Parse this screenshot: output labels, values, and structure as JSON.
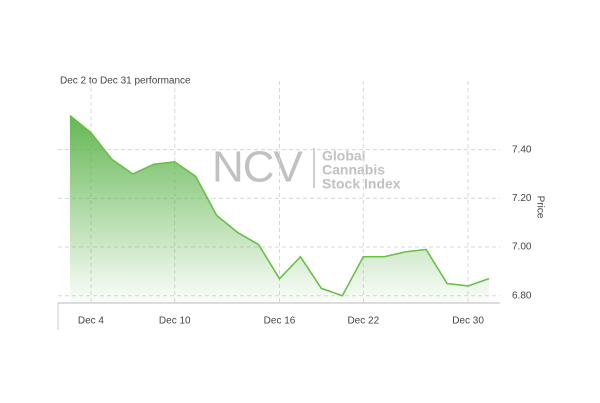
{
  "chart_data": {
    "type": "area",
    "subtitle": "Dec 2 to Dec 31 performance",
    "watermark": {
      "logo": "NCV",
      "lines": [
        "Global",
        "Cannabis",
        "Stock Index"
      ]
    },
    "y_label": "Price",
    "categories": [
      null,
      "Dec 4",
      null,
      null,
      null,
      "Dec 10",
      null,
      null,
      null,
      null,
      "Dec 16",
      null,
      null,
      null,
      "Dec 22",
      null,
      null,
      null,
      null,
      "Dec 30",
      null
    ],
    "values": [
      7.54,
      7.47,
      7.36,
      7.3,
      7.34,
      7.35,
      7.29,
      7.13,
      7.06,
      7.01,
      6.87,
      6.96,
      6.83,
      6.8,
      6.96,
      6.96,
      6.98,
      6.99,
      6.85,
      6.84,
      6.87
    ],
    "color": "#6abf4b",
    "ylim": [
      6.77,
      7.6
    ],
    "yticks": [
      {
        "value": 6.8,
        "label": "6.80"
      },
      {
        "value": 7.0,
        "label": "7.00"
      },
      {
        "value": 7.2,
        "label": "7.20"
      },
      {
        "value": 7.4,
        "label": "7.40"
      }
    ],
    "grid": true
  }
}
